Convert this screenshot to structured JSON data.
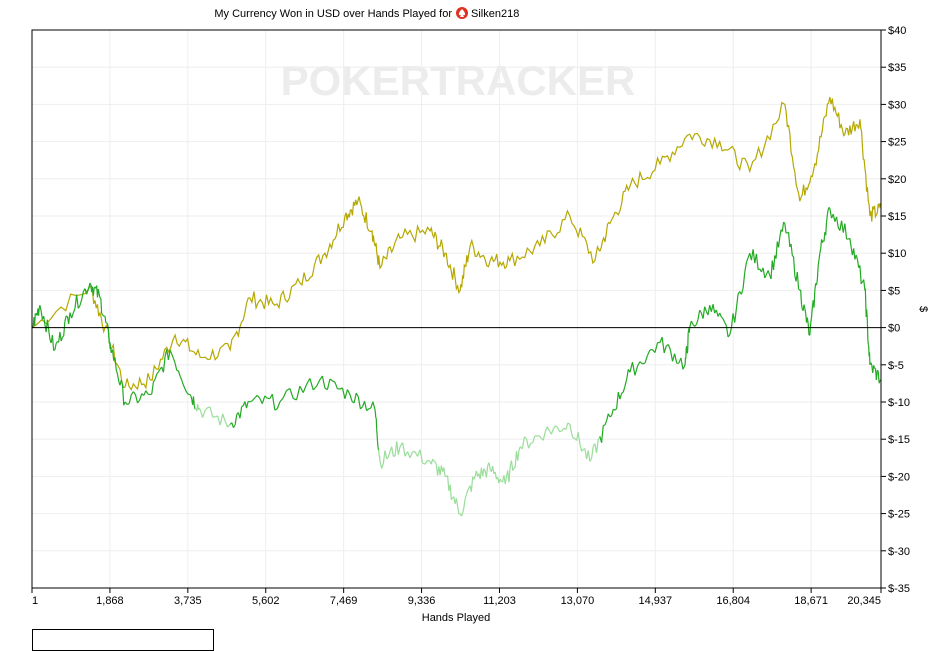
{
  "chart_data": {
    "type": "line",
    "title": "My Currency Won in USD over Hands Played for",
    "player": "Silken218",
    "watermark": "POKERTRACKER",
    "xlabel": "Hands Played",
    "ylabel": "$",
    "xlim": [
      1,
      20345
    ],
    "ylim": [
      -35,
      40
    ],
    "x_ticks": [
      1,
      1868,
      3735,
      5602,
      7469,
      9336,
      11203,
      13070,
      14937,
      16804,
      18671,
      20345
    ],
    "x_tick_labels": [
      "1",
      "1,868",
      "3,735",
      "5,602",
      "7,469",
      "9,336",
      "11,203",
      "13,070",
      "14,937",
      "16,804",
      "18,671",
      "20,345"
    ],
    "y_ticks": [
      40,
      35,
      30,
      25,
      20,
      15,
      10,
      5,
      0,
      -5,
      -10,
      -15,
      -20,
      -25,
      -30,
      -35
    ],
    "y_tick_labels": [
      "$40",
      "$35",
      "$30",
      "$25",
      "$20",
      "$15",
      "$10",
      "$5",
      "$0",
      "$-5",
      "$-10",
      "$-15",
      "$-20",
      "$-25",
      "$-30",
      "$-35"
    ],
    "grid": true,
    "series": [
      {
        "name": "gold",
        "color": "#b5a800",
        "x": [
          1,
          1390,
          1750,
          2230,
          2830,
          3430,
          4030,
          4750,
          5220,
          5820,
          6420,
          7020,
          7500,
          7810,
          8150,
          8340,
          8820,
          9540,
          9900,
          10260,
          10500,
          10980,
          11450,
          12170,
          12890,
          13490,
          13850,
          14330,
          15050,
          15760,
          16480,
          17200,
          18040,
          18400,
          18760,
          19120,
          19480,
          19840,
          20080,
          20345
        ],
        "y": [
          0,
          5.5,
          0,
          -8,
          -7,
          -1,
          -4,
          -3,
          4,
          3,
          6,
          10,
          15,
          17,
          13,
          8,
          12,
          13,
          10,
          5,
          11,
          9,
          9,
          11,
          15,
          9,
          14,
          19,
          22,
          26,
          25,
          21,
          30,
          17,
          22,
          31,
          26,
          28,
          15,
          16
        ]
      },
      {
        "name": "green",
        "color": "#22aa22",
        "color_light": "#99dd99",
        "x": [
          1,
          190,
          550,
          910,
          1390,
          1630,
          1870,
          2230,
          2830,
          3310,
          3790,
          4030,
          4750,
          5220,
          5940,
          6900,
          7620,
          8220,
          8340,
          8820,
          9540,
          9900,
          10260,
          10620,
          10980,
          11340,
          11700,
          12300,
          12890,
          13370,
          13850,
          14330,
          15050,
          15650,
          15760,
          16240,
          16720,
          17200,
          17680,
          18040,
          18400,
          18640,
          18880,
          19120,
          19600,
          19960,
          20080,
          20345
        ],
        "y": [
          0,
          3,
          -3,
          2,
          6,
          4,
          -2,
          -10,
          -9,
          -3,
          -9,
          -11,
          -13,
          -10,
          -10,
          -7,
          -9,
          -11,
          -18,
          -16,
          -18,
          -20,
          -25,
          -20,
          -19,
          -21,
          -16,
          -14,
          -13,
          -18,
          -12,
          -6,
          -2,
          -5,
          0,
          3,
          -1,
          10,
          7,
          14,
          5,
          -1,
          10,
          16,
          12,
          5,
          -5,
          -7
        ]
      }
    ]
  }
}
